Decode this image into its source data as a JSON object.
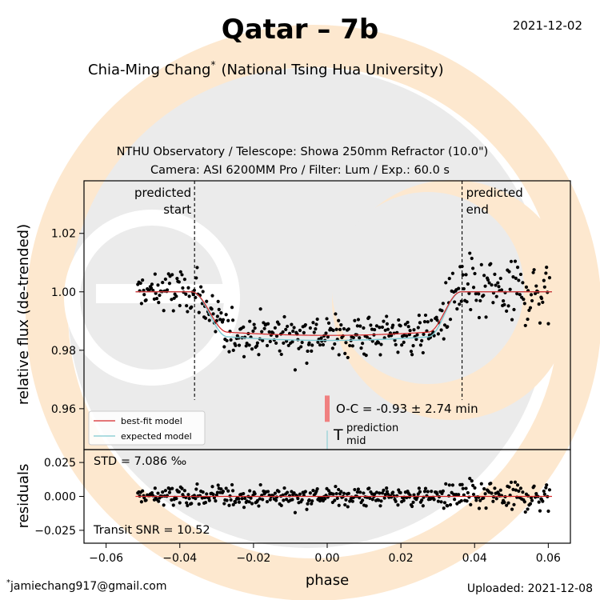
{
  "header": {
    "title": "Qatar – 7b",
    "date": "2021-12-02",
    "author": "Chia-Ming Chang",
    "author_mark": "*",
    "affiliation": "(National Tsing Hua University)"
  },
  "observation": {
    "line1": "NTHU Observatory / Telescope: Showa 250mm Refractor (10.0\")",
    "line2": "Camera: ASI 6200MM Pro / Filter: Lum / Exp.: 60.0 s"
  },
  "footer": {
    "email": "jamiechang917@gmail.com",
    "email_mark": "*",
    "uploaded": "Uploaded: 2021-12-08"
  },
  "colors": {
    "best_fit": "#d62728",
    "expected": "#7ec8d0",
    "oc_bar": "#f08080",
    "points": "#000000",
    "background_disc": "#ebebeb",
    "background_ring": "#fde8cf"
  },
  "chart_data": [
    {
      "type": "scatter",
      "panel": "main",
      "ylabel": "relative flux (de-trended)",
      "xlim": [
        -0.066,
        0.066
      ],
      "ylim": [
        0.946,
        1.038
      ],
      "yticks": [
        0.96,
        0.98,
        1.0,
        1.02
      ],
      "ytick_labels": [
        "0.96",
        "0.98",
        "1.00",
        "1.02"
      ],
      "predicted_start": -0.036,
      "predicted_end": 0.0366,
      "predicted_start_label": [
        "predicted",
        "start"
      ],
      "predicted_end_label": [
        "predicted",
        "end"
      ],
      "oc_text": "O-C = -0.93 ± 2.74 min",
      "oc_marker": {
        "x": 0.0,
        "y_range": [
          0.9555,
          0.9645
        ]
      },
      "tmid_symbol": "T",
      "tmid_sup": "prediction",
      "tmid_sub": "mid",
      "legend": {
        "position": "lower-left",
        "entries": [
          "best-fit model",
          "expected model"
        ]
      },
      "model": {
        "phase_range": [
          -0.052,
          0.061
        ],
        "t1": -0.0368,
        "t2": -0.027,
        "t3": 0.0274,
        "t4": 0.0363,
        "best_fit_depth": 0.0138,
        "expected_depth": 0.0154,
        "best_fit_shift": 0.0
      },
      "points_cloud": {
        "count": 430,
        "phase_range": [
          -0.0515,
          0.0605
        ],
        "scatter_std": 0.0071
      }
    },
    {
      "type": "scatter",
      "panel": "residuals",
      "ylabel": "residuals",
      "xlabel": "phase",
      "xlim": [
        -0.066,
        0.066
      ],
      "ylim": [
        -0.0345,
        0.0345
      ],
      "yticks": [
        -0.025,
        0.0,
        0.025
      ],
      "ytick_labels": [
        "−0.025",
        "0.000",
        "0.025"
      ],
      "xticks": [
        -0.06,
        -0.04,
        -0.02,
        0.0,
        0.02,
        0.04,
        0.06
      ],
      "xtick_labels": [
        "−0.06",
        "−0.04",
        "−0.02",
        "0.00",
        "0.02",
        "0.04",
        "0.06"
      ],
      "std_text": "STD = 7.086 ‰",
      "snr_text": "Transit SNR = 10.52"
    }
  ]
}
